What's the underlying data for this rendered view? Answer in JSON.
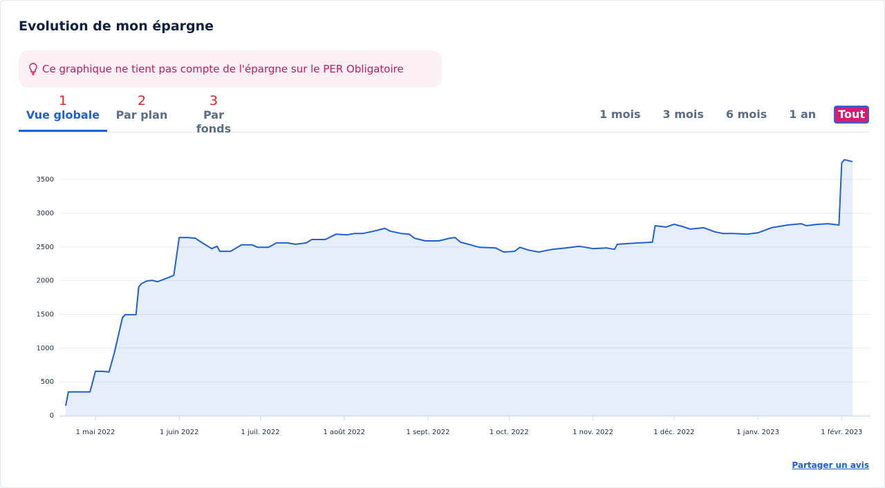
{
  "header": {
    "title": "Evolution de mon épargne"
  },
  "notice": {
    "text": "Ce graphique ne tient pas compte de l'épargne sur le PER Obligatoire"
  },
  "tabs": [
    {
      "number": "1",
      "label": "Vue globale"
    },
    {
      "number": "2",
      "label": "Par plan"
    },
    {
      "number": "3",
      "label": "Par fonds"
    }
  ],
  "ranges": [
    "1 mois",
    "3 mois",
    "6 mois",
    "1 an",
    "Tout"
  ],
  "footer": {
    "link": "Partager un avis"
  },
  "chart_data": {
    "type": "area",
    "color": "#1c5fd8",
    "grid": true,
    "xlim": [
      "2022-04-20",
      "2023-02-05"
    ],
    "ylim": [
      0,
      3900
    ],
    "yticks": [
      0,
      500,
      1000,
      1500,
      2000,
      2500,
      3000,
      3500
    ],
    "xticks": [
      {
        "value": "2022-05-01",
        "label": "1 mai 2022"
      },
      {
        "value": "2022-06-01",
        "label": "1 juin 2022"
      },
      {
        "value": "2022-07-01",
        "label": "1 juil. 2022"
      },
      {
        "value": "2022-08-01",
        "label": "1 août 2022"
      },
      {
        "value": "2022-09-01",
        "label": "1 sept. 2022"
      },
      {
        "value": "2022-10-01",
        "label": "1 oct. 2022"
      },
      {
        "value": "2022-11-01",
        "label": "1 nov. 2022"
      },
      {
        "value": "2022-12-01",
        "label": "1 déc. 2022"
      },
      {
        "value": "2023-01-01",
        "label": "1 janv. 2023"
      },
      {
        "value": "2023-02-01",
        "label": "1 févr. 2023"
      }
    ],
    "x": [
      "2022-04-20",
      "2022-04-21",
      "2022-04-29",
      "2022-05-01",
      "2022-05-04",
      "2022-05-06",
      "2022-05-08",
      "2022-05-11",
      "2022-05-12",
      "2022-05-16",
      "2022-05-17",
      "2022-05-18",
      "2022-05-20",
      "2022-05-22",
      "2022-05-24",
      "2022-05-28",
      "2022-05-30",
      "2022-06-01",
      "2022-06-04",
      "2022-06-07",
      "2022-06-08",
      "2022-06-10",
      "2022-06-13",
      "2022-06-15",
      "2022-06-16",
      "2022-06-20",
      "2022-06-24",
      "2022-06-28",
      "2022-06-30",
      "2022-07-04",
      "2022-07-07",
      "2022-07-11",
      "2022-07-14",
      "2022-07-18",
      "2022-07-20",
      "2022-07-25",
      "2022-07-29",
      "2022-08-02",
      "2022-08-05",
      "2022-08-08",
      "2022-08-12",
      "2022-08-16",
      "2022-08-18",
      "2022-08-22",
      "2022-08-25",
      "2022-08-27",
      "2022-08-31",
      "2022-09-05",
      "2022-09-09",
      "2022-09-11",
      "2022-09-13",
      "2022-09-16",
      "2022-09-20",
      "2022-09-26",
      "2022-09-29",
      "2022-10-03",
      "2022-10-05",
      "2022-10-08",
      "2022-10-12",
      "2022-10-17",
      "2022-10-22",
      "2022-10-27",
      "2022-11-01",
      "2022-11-06",
      "2022-11-09",
      "2022-11-10",
      "2022-11-14",
      "2022-11-18",
      "2022-11-23",
      "2022-11-24",
      "2022-11-28",
      "2022-12-01",
      "2022-12-04",
      "2022-12-07",
      "2022-12-12",
      "2022-12-16",
      "2022-12-19",
      "2022-12-23",
      "2022-12-28",
      "2023-01-01",
      "2023-01-04",
      "2023-01-06",
      "2023-01-12",
      "2023-01-17",
      "2023-01-19",
      "2023-01-23",
      "2023-01-27",
      "2023-01-31",
      "2023-02-01",
      "2023-02-02",
      "2023-02-05"
    ],
    "values": [
      145,
      350,
      350,
      655,
      655,
      645,
      930,
      1450,
      1495,
      1495,
      1905,
      1955,
      1995,
      2005,
      1985,
      2045,
      2080,
      2640,
      2640,
      2630,
      2600,
      2550,
      2475,
      2510,
      2435,
      2435,
      2530,
      2530,
      2495,
      2495,
      2560,
      2560,
      2540,
      2560,
      2610,
      2610,
      2690,
      2680,
      2700,
      2700,
      2735,
      2775,
      2735,
      2700,
      2690,
      2630,
      2590,
      2590,
      2630,
      2640,
      2570,
      2540,
      2495,
      2485,
      2425,
      2435,
      2495,
      2455,
      2425,
      2465,
      2485,
      2510,
      2475,
      2485,
      2465,
      2540,
      2550,
      2560,
      2570,
      2815,
      2795,
      2835,
      2805,
      2765,
      2785,
      2725,
      2700,
      2700,
      2690,
      2710,
      2755,
      2785,
      2825,
      2845,
      2815,
      2835,
      2845,
      2825,
      3745,
      3795,
      3765
    ]
  }
}
